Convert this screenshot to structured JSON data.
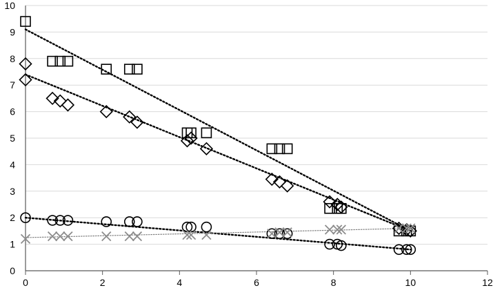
{
  "chart_data": {
    "type": "scatter",
    "title": "",
    "xlabel": "",
    "ylabel": "",
    "xlim": [
      0,
      12
    ],
    "ylim": [
      0,
      10
    ],
    "x_ticks": [
      0,
      2,
      4,
      6,
      8,
      10,
      12
    ],
    "y_ticks": [
      0,
      1,
      2,
      3,
      4,
      5,
      6,
      7,
      8,
      9,
      10
    ],
    "grid": "horizontal",
    "legend": "none",
    "series": [
      {
        "marker": "square",
        "color": "#000000",
        "points": [
          [
            0,
            9.4
          ],
          [
            0.7,
            7.9
          ],
          [
            0.9,
            7.9
          ],
          [
            1.1,
            7.9
          ],
          [
            2.1,
            7.6
          ],
          [
            2.7,
            7.6
          ],
          [
            2.9,
            7.6
          ],
          [
            4.2,
            5.2
          ],
          [
            4.3,
            5.2
          ],
          [
            4.7,
            5.2
          ],
          [
            6.4,
            4.6
          ],
          [
            6.6,
            4.6
          ],
          [
            6.8,
            4.6
          ],
          [
            7.9,
            2.35
          ],
          [
            8.1,
            2.35
          ],
          [
            8.2,
            2.35
          ],
          [
            9.7,
            1.5
          ],
          [
            9.9,
            1.5
          ],
          [
            10.0,
            1.5
          ]
        ],
        "trendline": {
          "style": "dotted",
          "from": [
            0,
            9.1
          ],
          "to": [
            10,
            1.5
          ]
        }
      },
      {
        "marker": "diamond",
        "color": "#000000",
        "points": [
          [
            0,
            7.8
          ],
          [
            0,
            7.2
          ],
          [
            0.7,
            6.5
          ],
          [
            0.9,
            6.4
          ],
          [
            1.1,
            6.25
          ],
          [
            2.1,
            6.0
          ],
          [
            2.7,
            5.8
          ],
          [
            2.9,
            5.6
          ],
          [
            4.2,
            4.9
          ],
          [
            4.3,
            5.0
          ],
          [
            4.7,
            4.6
          ],
          [
            6.4,
            3.45
          ],
          [
            6.6,
            3.35
          ],
          [
            6.8,
            3.2
          ],
          [
            7.9,
            2.6
          ],
          [
            8.1,
            2.5
          ],
          [
            8.2,
            2.4
          ],
          [
            9.7,
            1.6
          ],
          [
            9.9,
            1.55
          ],
          [
            10.0,
            1.5
          ]
        ],
        "trendline": {
          "style": "dotted",
          "from": [
            0,
            7.4
          ],
          "to": [
            10,
            1.5
          ]
        }
      },
      {
        "marker": "circle",
        "color": "#000000",
        "points": [
          [
            0,
            2.0
          ],
          [
            0.7,
            1.9
          ],
          [
            0.9,
            1.9
          ],
          [
            1.1,
            1.9
          ],
          [
            2.1,
            1.85
          ],
          [
            2.7,
            1.85
          ],
          [
            2.9,
            1.85
          ],
          [
            4.2,
            1.65
          ],
          [
            4.3,
            1.65
          ],
          [
            4.7,
            1.65
          ],
          [
            6.4,
            1.4
          ],
          [
            6.6,
            1.4
          ],
          [
            6.8,
            1.4
          ],
          [
            7.9,
            1.0
          ],
          [
            8.1,
            1.0
          ],
          [
            8.2,
            0.95
          ],
          [
            9.7,
            0.8
          ],
          [
            9.9,
            0.8
          ],
          [
            10.0,
            0.8
          ]
        ],
        "trendline": {
          "style": "dotted",
          "from": [
            0,
            2.0
          ],
          "to": [
            10,
            0.8
          ]
        }
      },
      {
        "marker": "x",
        "color": "#8c8c8c",
        "points": [
          [
            0,
            1.2
          ],
          [
            0.7,
            1.3
          ],
          [
            0.9,
            1.3
          ],
          [
            1.1,
            1.3
          ],
          [
            2.1,
            1.3
          ],
          [
            2.7,
            1.3
          ],
          [
            2.9,
            1.3
          ],
          [
            4.2,
            1.35
          ],
          [
            4.3,
            1.35
          ],
          [
            4.7,
            1.35
          ],
          [
            6.4,
            1.4
          ],
          [
            6.6,
            1.45
          ],
          [
            6.8,
            1.45
          ],
          [
            7.9,
            1.55
          ],
          [
            8.1,
            1.55
          ],
          [
            8.2,
            1.55
          ],
          [
            9.7,
            1.6
          ],
          [
            9.9,
            1.6
          ],
          [
            10.0,
            1.6
          ]
        ],
        "trendline": {
          "style": "dotted-thin",
          "from": [
            0,
            1.25
          ],
          "to": [
            10,
            1.6
          ]
        }
      }
    ]
  }
}
